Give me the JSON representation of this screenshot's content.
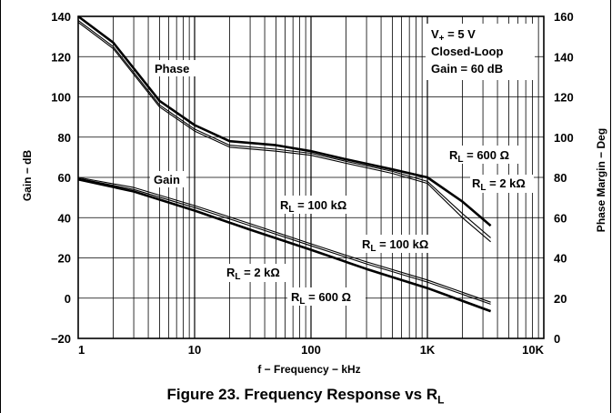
{
  "caption": {
    "main": "Figure 23. Frequency Response vs R",
    "sub": "L"
  },
  "chart_data": {
    "type": "line",
    "x_scale": "log",
    "xlim": [
      1,
      10000
    ],
    "xlabel": "f − Frequency − kHz",
    "x_ticks": [
      "1",
      "10",
      "100",
      "1K",
      "10K"
    ],
    "y_left": {
      "label": "Gain − dB",
      "lim": [
        -20,
        140
      ],
      "ticks": [
        "140",
        "120",
        "100",
        "80",
        "60",
        "40",
        "20",
        "0",
        "−20"
      ]
    },
    "y_right": {
      "label": "Phase Margin − Deg",
      "lim": [
        0,
        160
      ],
      "ticks": [
        "160",
        "140",
        "120",
        "100",
        "80",
        "60",
        "40",
        "20",
        "0"
      ]
    },
    "grid": true,
    "conditions": [
      "V+ = 5 V",
      "Closed-Loop",
      "Gain = 60 dB"
    ],
    "phase_series": [
      {
        "name": "RL = 600 Ω",
        "points": [
          [
            1,
            160
          ],
          [
            2,
            147
          ],
          [
            5,
            118
          ],
          [
            10,
            106
          ],
          [
            20,
            98
          ],
          [
            50,
            96
          ],
          [
            100,
            93
          ],
          [
            200,
            89
          ],
          [
            500,
            84
          ],
          [
            1000,
            80
          ],
          [
            2000,
            68
          ],
          [
            3500,
            56
          ]
        ]
      },
      {
        "name": "RL = 2 kΩ",
        "points": [
          [
            1,
            158
          ],
          [
            2,
            145
          ],
          [
            5,
            116
          ],
          [
            10,
            104
          ],
          [
            20,
            96
          ],
          [
            50,
            94
          ],
          [
            100,
            92
          ],
          [
            200,
            88
          ],
          [
            500,
            83
          ],
          [
            1000,
            78
          ],
          [
            2000,
            62
          ],
          [
            3500,
            50
          ]
        ]
      },
      {
        "name": "RL = 100 kΩ",
        "points": [
          [
            1,
            157
          ],
          [
            2,
            144
          ],
          [
            5,
            115
          ],
          [
            10,
            103
          ],
          [
            20,
            95
          ],
          [
            50,
            93
          ],
          [
            100,
            91
          ],
          [
            200,
            87
          ],
          [
            500,
            82
          ],
          [
            1000,
            77
          ],
          [
            2000,
            60
          ],
          [
            3500,
            48
          ]
        ]
      }
    ],
    "gain_series": [
      {
        "name": "RL = 100 kΩ",
        "points": [
          [
            1,
            60
          ],
          [
            3,
            55
          ],
          [
            10,
            46
          ],
          [
            30,
            37
          ],
          [
            100,
            27
          ],
          [
            300,
            18
          ],
          [
            1000,
            9
          ],
          [
            3500,
            -2
          ]
        ]
      },
      {
        "name": "RL = 2 kΩ",
        "points": [
          [
            1,
            59.5
          ],
          [
            3,
            54
          ],
          [
            10,
            45
          ],
          [
            30,
            36
          ],
          [
            100,
            26
          ],
          [
            300,
            17
          ],
          [
            1000,
            8
          ],
          [
            3500,
            -3
          ]
        ]
      },
      {
        "name": "RL = 600 Ω",
        "points": [
          [
            1,
            59
          ],
          [
            3,
            53
          ],
          [
            10,
            43.5
          ],
          [
            30,
            34
          ],
          [
            100,
            24
          ],
          [
            300,
            14.5
          ],
          [
            1000,
            5
          ],
          [
            3500,
            -6.5
          ]
        ]
      }
    ],
    "labels": {
      "phase": "Phase",
      "gain": "Gain",
      "rl_600_top": [
        "R",
        "L",
        " = 600 Ω"
      ],
      "rl_2k_top": [
        "R",
        "L",
        " = 2 kΩ"
      ],
      "rl_100k_mid": [
        "R",
        "L",
        " = 100 kΩ"
      ],
      "rl_100k_gain": [
        "R",
        "L",
        " = 100 kΩ"
      ],
      "rl_2k_gain": [
        "R",
        "L",
        " = 2 kΩ"
      ],
      "rl_600_gain": [
        "R",
        "L",
        " = 600 Ω"
      ]
    }
  }
}
